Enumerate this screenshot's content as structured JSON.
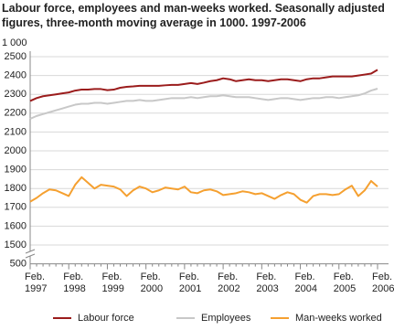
{
  "chart_data": {
    "type": "line",
    "title": "Labour force, employees and man-weeks worked. Seasonally adjusted figures, three-month moving average in 1000. 1997-2006",
    "y_unit_label": "1 000",
    "categories": [
      "Feb.\n1997",
      null,
      null,
      null,
      null,
      null,
      "Feb.\n1998",
      null,
      null,
      null,
      null,
      null,
      "Feb.\n1999",
      null,
      null,
      null,
      null,
      null,
      "Feb.\n2000",
      null,
      null,
      null,
      null,
      null,
      "Feb.\n2001",
      null,
      null,
      null,
      null,
      null,
      "Feb.\n2002",
      null,
      null,
      null,
      null,
      null,
      "Feb.\n2003",
      null,
      null,
      null,
      null,
      null,
      "Feb.\n2004",
      null,
      null,
      null,
      null,
      null,
      "Feb.\n2005",
      null,
      null,
      null,
      null,
      null,
      "Feb.\n2006"
    ],
    "series": [
      {
        "name": "Labour force",
        "color": "#9b1c1c",
        "values": [
          2265,
          2280,
          2290,
          2295,
          2300,
          2305,
          2310,
          2320,
          2325,
          2325,
          2328,
          2328,
          2322,
          2325,
          2335,
          2340,
          2342,
          2345,
          2345,
          2345,
          2345,
          2348,
          2350,
          2350,
          2355,
          2360,
          2355,
          2362,
          2370,
          2375,
          2385,
          2380,
          2370,
          2375,
          2380,
          2375,
          2375,
          2370,
          2375,
          2380,
          2380,
          2375,
          2370,
          2380,
          2385,
          2385,
          2390,
          2395,
          2395,
          2395,
          2395,
          2400,
          2405,
          2410,
          2430
        ]
      },
      {
        "name": "Employees",
        "color": "#c8c8c8",
        "values": [
          2170,
          2185,
          2195,
          2205,
          2215,
          2225,
          2235,
          2245,
          2250,
          2250,
          2255,
          2255,
          2250,
          2255,
          2260,
          2265,
          2265,
          2270,
          2265,
          2265,
          2270,
          2275,
          2280,
          2280,
          2280,
          2285,
          2280,
          2285,
          2290,
          2290,
          2295,
          2290,
          2285,
          2285,
          2285,
          2280,
          2275,
          2270,
          2275,
          2280,
          2280,
          2275,
          2270,
          2275,
          2280,
          2280,
          2285,
          2285,
          2280,
          2285,
          2290,
          2295,
          2305,
          2320,
          2330
        ]
      },
      {
        "name": "Man-weeks worked",
        "color": "#f5a030",
        "values": [
          1730,
          1750,
          1775,
          1795,
          1790,
          1775,
          1760,
          1820,
          1860,
          1830,
          1800,
          1820,
          1815,
          1810,
          1795,
          1760,
          1790,
          1810,
          1800,
          1780,
          1790,
          1805,
          1800,
          1795,
          1810,
          1780,
          1775,
          1790,
          1795,
          1785,
          1765,
          1770,
          1775,
          1785,
          1780,
          1770,
          1775,
          1760,
          1745,
          1765,
          1780,
          1770,
          1740,
          1725,
          1760,
          1770,
          1770,
          1765,
          1770,
          1795,
          1815,
          1760,
          1790,
          1840,
          1810
        ]
      }
    ],
    "ylim": [
      1500,
      2500
    ],
    "yticks": [
      1500,
      1600,
      1700,
      1800,
      1900,
      2000,
      2100,
      2200,
      2300,
      2400,
      2500
    ],
    "axis_break_tick": 500,
    "grid": true,
    "legend": "bottom"
  }
}
